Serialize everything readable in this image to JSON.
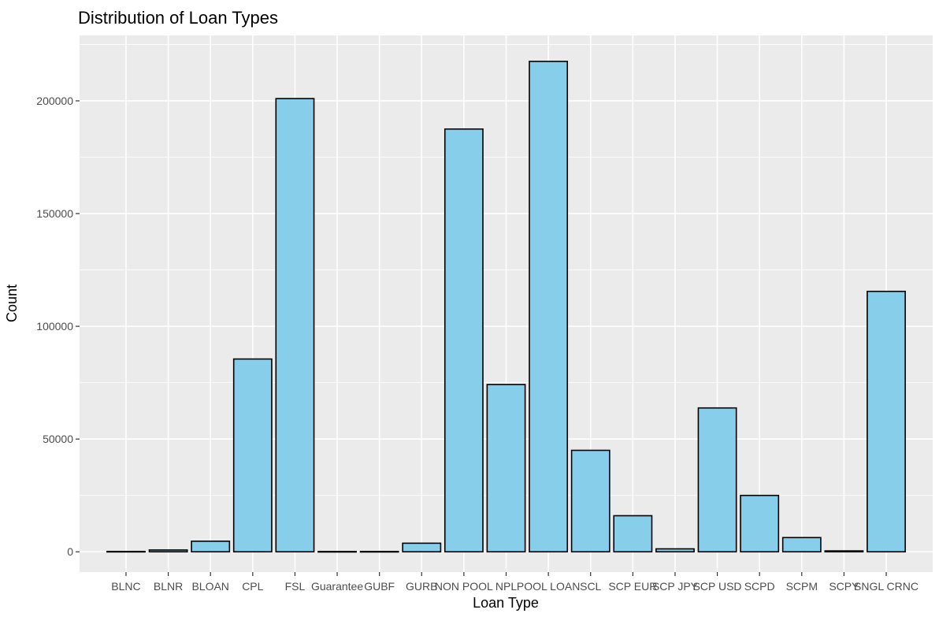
{
  "chart_data": {
    "type": "bar",
    "title": "Distribution of Loan Types",
    "xlabel": "Loan Type",
    "ylabel": "Count",
    "categories": [
      "BLNC",
      "BLNR",
      "BLOAN",
      "CPL",
      "FSL",
      "Guarantee",
      "GUBF",
      "GURB",
      "NON POOL",
      "NPL",
      "POOL LOAN",
      "SCL",
      "SCP EUR",
      "SCP JPY",
      "SCP USD",
      "SCPD",
      "SCPM",
      "SCPY",
      "SNGL CRNC"
    ],
    "values": [
      150,
      800,
      4700,
      85500,
      201000,
      120,
      130,
      3800,
      187500,
      74200,
      217500,
      45000,
      16000,
      1300,
      63800,
      25000,
      6300,
      400,
      115500
    ],
    "ylim": [
      -9000,
      229000
    ],
    "yticks": [
      0,
      50000,
      100000,
      150000,
      200000
    ],
    "grid": true,
    "legend": "none",
    "colors": {
      "panel": "#EBEBEB",
      "grid": "#FFFFFF",
      "bar_fill": "#87CEEB",
      "bar_border": "#000000",
      "tick_text": "#4D4D4D",
      "tick_mark": "#333333"
    }
  }
}
